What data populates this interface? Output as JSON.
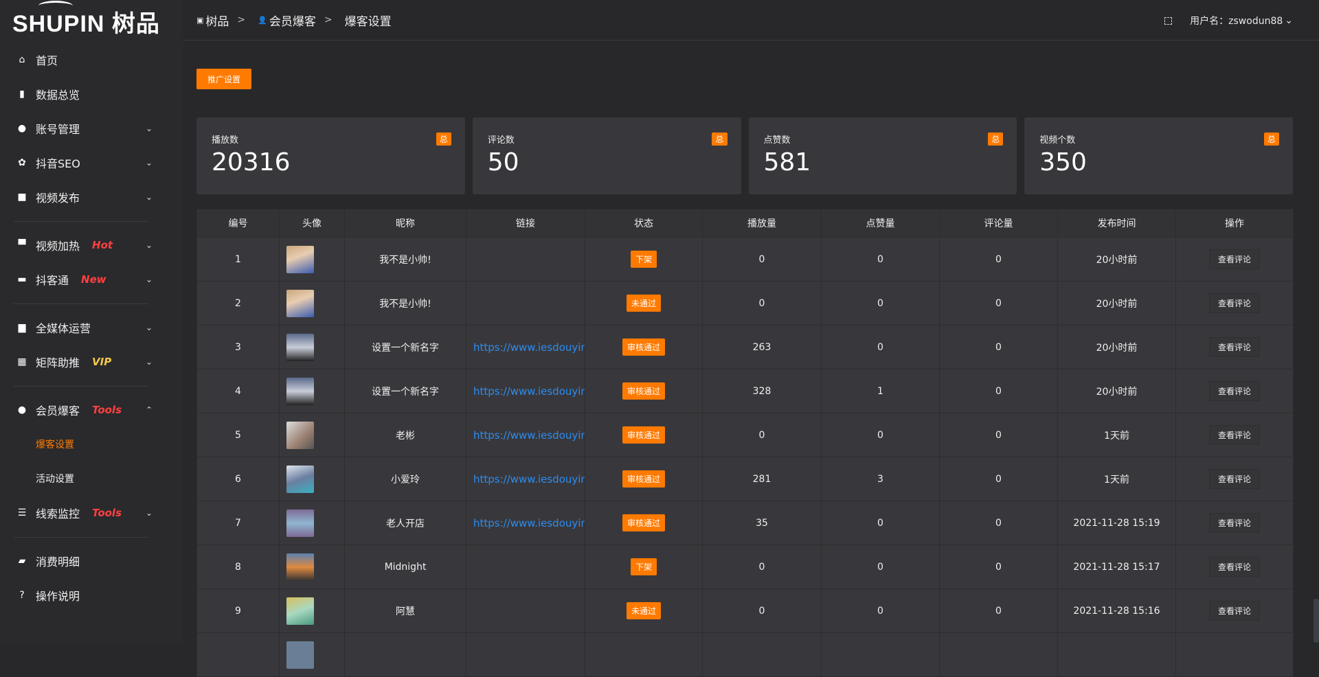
{
  "logo": {
    "text": "SHUPIN 树品"
  },
  "sidebar": {
    "items": [
      {
        "label": "首页",
        "icon": "home-icon",
        "glyph": "⌂"
      },
      {
        "label": "数据总览",
        "icon": "bar-chart-icon",
        "glyph": "▮"
      },
      {
        "label": "账号管理",
        "icon": "user-icon",
        "glyph": "●",
        "chev": "⌄"
      },
      {
        "label": "抖音SEO",
        "icon": "gear-icon",
        "glyph": "✿",
        "chev": "⌄"
      },
      {
        "label": "视频发布",
        "icon": "camera-icon",
        "glyph": "■",
        "chev": "⌄"
      },
      {
        "label": "视频加热",
        "icon": "board-icon",
        "glyph": "▀",
        "tag": "Hot",
        "chev": "⌄"
      },
      {
        "label": "抖客通",
        "icon": "chat-icon",
        "glyph": "▬",
        "tag": "New",
        "chev": "⌄"
      },
      {
        "label": "全媒体运营",
        "icon": "monitor-icon",
        "glyph": "▆",
        "chev": "⌄"
      },
      {
        "label": "矩阵助推",
        "icon": "grid-icon",
        "glyph": "▦",
        "tag": "VIP",
        "chev": "⌄"
      },
      {
        "label": "会员爆客",
        "icon": "user-icon",
        "glyph": "●",
        "tag": "Tools",
        "chev": "⌃"
      },
      {
        "label": "爆客设置"
      },
      {
        "label": "活动设置"
      },
      {
        "label": "线索监控",
        "icon": "sliders-icon",
        "glyph": "☰",
        "tag": "Tools",
        "chev": "⌄"
      },
      {
        "label": "消费明细",
        "icon": "wallet-icon",
        "glyph": "▰"
      },
      {
        "label": "操作说明",
        "icon": "help-icon",
        "glyph": "?"
      }
    ]
  },
  "breadcrumb": [
    {
      "label": "树品",
      "icon": "image-icon"
    },
    {
      "label": "会员爆客",
      "icon": "user-icon"
    },
    {
      "label": "爆客设置"
    }
  ],
  "header": {
    "user_label": "用户名：zswodun88"
  },
  "promo_button": "推广设置",
  "stats": [
    {
      "label": "播放数",
      "value": "20316",
      "badge": "总"
    },
    {
      "label": "评论数",
      "value": "50",
      "badge": "总"
    },
    {
      "label": "点赞数",
      "value": "581",
      "badge": "总"
    },
    {
      "label": "视频个数",
      "value": "350",
      "badge": "总"
    }
  ],
  "table": {
    "columns": [
      "编号",
      "头像",
      "昵称",
      "链接",
      "状态",
      "播放量",
      "点赞量",
      "评论量",
      "发布时间",
      "操作"
    ],
    "action_label": "查看评论",
    "rows": [
      {
        "id": "1",
        "name": "我不是小帅!",
        "link": "",
        "status": "下架",
        "plays": "0",
        "likes": "0",
        "comments": "0",
        "time": "20小时前"
      },
      {
        "id": "2",
        "name": "我不是小帅!",
        "link": "",
        "status": "未通过",
        "plays": "0",
        "likes": "0",
        "comments": "0",
        "time": "20小时前"
      },
      {
        "id": "3",
        "name": "设置一个新名字",
        "link": "https://www.iesdouyin.c",
        "status": "审核通过",
        "plays": "263",
        "likes": "0",
        "comments": "0",
        "time": "20小时前"
      },
      {
        "id": "4",
        "name": "设置一个新名字",
        "link": "https://www.iesdouyin.c",
        "status": "审核通过",
        "plays": "328",
        "likes": "1",
        "comments": "0",
        "time": "20小时前"
      },
      {
        "id": "5",
        "name": "老彬",
        "link": "https://www.iesdouyin.c",
        "status": "审核通过",
        "plays": "0",
        "likes": "0",
        "comments": "0",
        "time": "1天前"
      },
      {
        "id": "6",
        "name": "小爱玲",
        "link": "https://www.iesdouyin.c",
        "status": "审核通过",
        "plays": "281",
        "likes": "3",
        "comments": "0",
        "time": "1天前"
      },
      {
        "id": "7",
        "name": "老人开店",
        "link": "https://www.iesdouyin.c",
        "status": "审核通过",
        "plays": "35",
        "likes": "0",
        "comments": "0",
        "time": "2021-11-28 15:19"
      },
      {
        "id": "8",
        "name": "Midnight",
        "link": "",
        "status": "下架",
        "plays": "0",
        "likes": "0",
        "comments": "0",
        "time": "2021-11-28 15:17"
      },
      {
        "id": "9",
        "name": "阿慧",
        "link": "",
        "status": "未通过",
        "plays": "0",
        "likes": "0",
        "comments": "0",
        "time": "2021-11-28 15:16"
      }
    ]
  },
  "colors": {
    "accent": "#ff7a00",
    "link": "#2d8cf0",
    "tag_red": "#ff4040",
    "tag_vip": "#f5c84a"
  }
}
